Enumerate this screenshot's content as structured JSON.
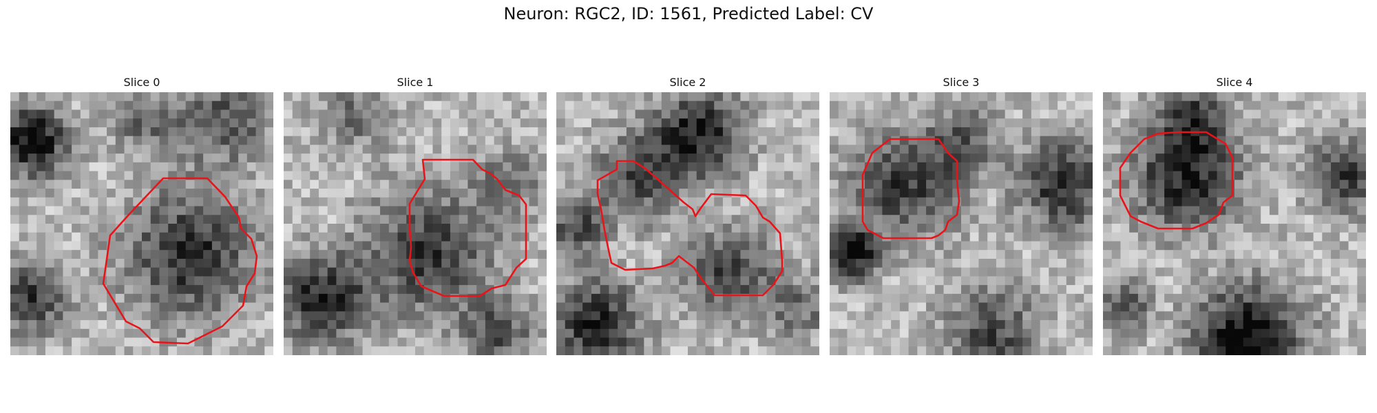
{
  "figure": {
    "title": "Neuron: RGC2, ID: 1561, Predicted Label: CV"
  },
  "panels": [
    {
      "title": "Slice 0",
      "contour_color": "#e8141a",
      "image": "grayscale-microscopy-patch"
    },
    {
      "title": "Slice 1",
      "contour_color": "#e8141a",
      "image": "grayscale-microscopy-patch"
    },
    {
      "title": "Slice 2",
      "contour_color": "#e8141a",
      "image": "grayscale-microscopy-patch"
    },
    {
      "title": "Slice 3",
      "contour_color": "#e8141a",
      "image": "grayscale-microscopy-patch"
    },
    {
      "title": "Slice 4",
      "contour_color": "#e8141a",
      "image": "grayscale-microscopy-patch"
    }
  ]
}
